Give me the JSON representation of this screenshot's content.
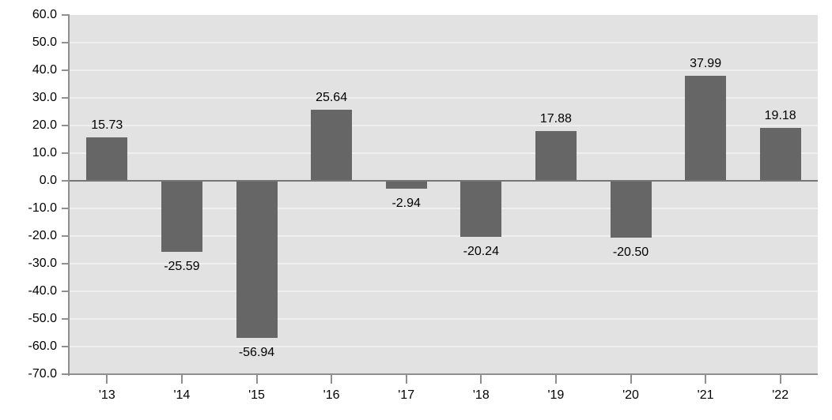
{
  "chart_data": {
    "type": "bar",
    "title": "",
    "xlabel": "",
    "ylabel": "",
    "categories": [
      "'13",
      "'14",
      "'15",
      "'16",
      "'17",
      "'18",
      "'19",
      "'20",
      "'21",
      "'22"
    ],
    "values": [
      15.73,
      -25.59,
      -56.94,
      25.64,
      -2.94,
      -20.24,
      17.88,
      -20.5,
      37.99,
      19.18
    ],
    "value_labels": [
      "15.73",
      "-25.59",
      "-56.94",
      "25.64",
      "-2.94",
      "-20.24",
      "17.88",
      "-20.50",
      "37.99",
      "19.18"
    ],
    "ylim": [
      -70,
      60
    ],
    "ytick_step": 10,
    "ytick_labels": [
      "60.0",
      "50.0",
      "40.0",
      "30.0",
      "20.0",
      "10.0",
      "0.0",
      "-10.0",
      "-20.0",
      "-30.0",
      "-40.0",
      "-50.0",
      "-60.0",
      "-70.0"
    ],
    "grid": true,
    "legend": false
  },
  "colors": {
    "page_bg": "#ffffff",
    "plot_bg": "#e2e2e2",
    "gridline": "#efefef",
    "bar": "#666666",
    "axis": "#8f8f8f",
    "zero_line": "#757575",
    "text": "#000000"
  }
}
